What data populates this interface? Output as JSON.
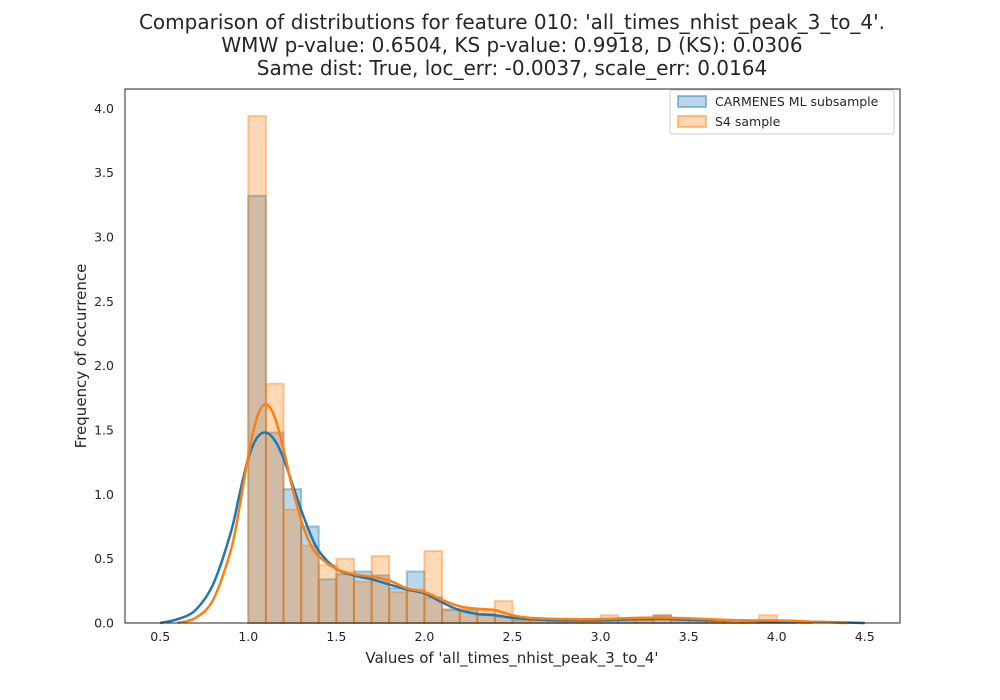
{
  "chart_data": {
    "type": "histogram",
    "title_lines": [
      "Comparison of distributions for feature 010: 'all_times_nhist_peak_3_to_4'.",
      "WMW p-value: 0.6504, KS p-value: 0.9918, D (KS): 0.0306",
      "Same dist: True, loc_err: -0.0037, scale_err: 0.0164"
    ],
    "xlabel": "Values of 'all_times_nhist_peak_3_to_4'",
    "ylabel": "Frequency of occurrence",
    "xlim": [
      0.3,
      4.7
    ],
    "ylim": [
      0,
      4.15
    ],
    "xticks": [
      "0.5",
      "1.0",
      "1.5",
      "2.0",
      "2.5",
      "3.0",
      "3.5",
      "4.0",
      "4.5"
    ],
    "yticks": [
      "0.0",
      "0.5",
      "1.0",
      "1.5",
      "2.0",
      "2.5",
      "3.0",
      "3.5",
      "4.0"
    ],
    "grid": false,
    "legend_position": "top-right",
    "series": [
      {
        "name": "CARMENES ML subsample",
        "color": "#1f77b4",
        "bins": [
          {
            "x0": 1.0,
            "x1": 1.1,
            "y": 3.32
          },
          {
            "x0": 1.1,
            "x1": 1.2,
            "y": 1.48
          },
          {
            "x0": 1.2,
            "x1": 1.3,
            "y": 1.04
          },
          {
            "x0": 1.3,
            "x1": 1.4,
            "y": 0.75
          },
          {
            "x0": 1.4,
            "x1": 1.5,
            "y": 0.34
          },
          {
            "x0": 1.5,
            "x1": 1.6,
            "y": 0.38
          },
          {
            "x0": 1.6,
            "x1": 1.7,
            "y": 0.4
          },
          {
            "x0": 1.7,
            "x1": 1.8,
            "y": 0.37
          },
          {
            "x0": 1.8,
            "x1": 1.9,
            "y": 0.27
          },
          {
            "x0": 1.9,
            "x1": 2.0,
            "y": 0.4
          },
          {
            "x0": 2.0,
            "x1": 2.1,
            "y": 0.2
          },
          {
            "x0": 2.1,
            "x1": 2.2,
            "y": 0.1
          },
          {
            "x0": 2.2,
            "x1": 2.3,
            "y": 0.1
          },
          {
            "x0": 2.3,
            "x1": 2.4,
            "y": 0.07
          },
          {
            "x0": 2.4,
            "x1": 2.5,
            "y": 0.05
          },
          {
            "x0": 2.5,
            "x1": 2.6,
            "y": 0.02
          },
          {
            "x0": 2.6,
            "x1": 2.7,
            "y": 0.02
          },
          {
            "x0": 2.7,
            "x1": 2.8,
            "y": 0.01
          },
          {
            "x0": 2.8,
            "x1": 2.9,
            "y": 0.02
          },
          {
            "x0": 2.9,
            "x1": 3.0,
            "y": 0.02
          },
          {
            "x0": 3.0,
            "x1": 3.1,
            "y": 0.03
          },
          {
            "x0": 3.1,
            "x1": 3.2,
            "y": 0.02
          },
          {
            "x0": 3.2,
            "x1": 3.3,
            "y": 0.02
          },
          {
            "x0": 3.3,
            "x1": 3.4,
            "y": 0.06
          },
          {
            "x0": 3.4,
            "x1": 3.5,
            "y": 0.02
          },
          {
            "x0": 3.5,
            "x1": 3.6,
            "y": 0.02
          },
          {
            "x0": 3.6,
            "x1": 3.7,
            "y": 0.02
          },
          {
            "x0": 3.7,
            "x1": 3.8,
            "y": 0.02
          },
          {
            "x0": 3.8,
            "x1": 3.9,
            "y": 0.01
          },
          {
            "x0": 3.9,
            "x1": 4.0,
            "y": 0.02
          },
          {
            "x0": 4.0,
            "x1": 4.1,
            "y": 0.01
          },
          {
            "x0": 4.1,
            "x1": 4.2,
            "y": 0.01
          }
        ],
        "kde": {
          "x": [
            0.5,
            0.6,
            0.7,
            0.8,
            0.9,
            0.95,
            1.0,
            1.05,
            1.1,
            1.15,
            1.2,
            1.25,
            1.3,
            1.35,
            1.4,
            1.5,
            1.6,
            1.7,
            1.8,
            1.9,
            2.0,
            2.1,
            2.2,
            2.3,
            2.4,
            2.5,
            2.6,
            2.8,
            3.0,
            3.2,
            3.4,
            3.6,
            3.8,
            4.0,
            4.2,
            4.5
          ],
          "y": [
            0.0,
            0.03,
            0.1,
            0.3,
            0.7,
            1.0,
            1.28,
            1.44,
            1.48,
            1.42,
            1.28,
            1.08,
            0.88,
            0.7,
            0.56,
            0.42,
            0.37,
            0.34,
            0.3,
            0.26,
            0.23,
            0.16,
            0.1,
            0.07,
            0.06,
            0.04,
            0.03,
            0.02,
            0.02,
            0.03,
            0.03,
            0.02,
            0.02,
            0.01,
            0.01,
            0.0
          ]
        }
      },
      {
        "name": "S4 sample",
        "color": "#ff7f0e",
        "bins": [
          {
            "x0": 1.0,
            "x1": 1.1,
            "y": 3.94
          },
          {
            "x0": 1.1,
            "x1": 1.2,
            "y": 1.86
          },
          {
            "x0": 1.2,
            "x1": 1.3,
            "y": 0.88
          },
          {
            "x0": 1.3,
            "x1": 1.4,
            "y": 0.6
          },
          {
            "x0": 1.4,
            "x1": 1.5,
            "y": 0.45
          },
          {
            "x0": 1.5,
            "x1": 1.6,
            "y": 0.5
          },
          {
            "x0": 1.6,
            "x1": 1.7,
            "y": 0.32
          },
          {
            "x0": 1.7,
            "x1": 1.8,
            "y": 0.52
          },
          {
            "x0": 1.8,
            "x1": 1.9,
            "y": 0.24
          },
          {
            "x0": 1.9,
            "x1": 2.0,
            "y": 0.26
          },
          {
            "x0": 2.0,
            "x1": 2.1,
            "y": 0.56
          },
          {
            "x0": 2.1,
            "x1": 2.2,
            "y": 0.11
          },
          {
            "x0": 2.2,
            "x1": 2.3,
            "y": 0.11
          },
          {
            "x0": 2.3,
            "x1": 2.4,
            "y": 0.1
          },
          {
            "x0": 2.4,
            "x1": 2.5,
            "y": 0.17
          },
          {
            "x0": 2.5,
            "x1": 2.6,
            "y": 0.03
          },
          {
            "x0": 2.6,
            "x1": 2.7,
            "y": 0.02
          },
          {
            "x0": 2.7,
            "x1": 2.8,
            "y": 0.02
          },
          {
            "x0": 2.8,
            "x1": 2.9,
            "y": 0.02
          },
          {
            "x0": 2.9,
            "x1": 3.0,
            "y": 0.02
          },
          {
            "x0": 3.0,
            "x1": 3.1,
            "y": 0.06
          },
          {
            "x0": 3.1,
            "x1": 3.2,
            "y": 0.02
          },
          {
            "x0": 3.2,
            "x1": 3.3,
            "y": 0.02
          },
          {
            "x0": 3.3,
            "x1": 3.4,
            "y": 0.06
          },
          {
            "x0": 3.4,
            "x1": 3.5,
            "y": 0.04
          },
          {
            "x0": 3.5,
            "x1": 3.6,
            "y": 0.02
          },
          {
            "x0": 3.6,
            "x1": 3.7,
            "y": 0.02
          },
          {
            "x0": 3.7,
            "x1": 3.8,
            "y": 0.02
          },
          {
            "x0": 3.8,
            "x1": 3.9,
            "y": 0.02
          },
          {
            "x0": 3.9,
            "x1": 4.0,
            "y": 0.06
          },
          {
            "x0": 4.0,
            "x1": 4.1,
            "y": 0.02
          }
        ],
        "kde": {
          "x": [
            0.6,
            0.7,
            0.8,
            0.9,
            0.95,
            1.0,
            1.05,
            1.1,
            1.15,
            1.2,
            1.25,
            1.3,
            1.35,
            1.4,
            1.5,
            1.6,
            1.7,
            1.8,
            1.9,
            2.0,
            2.1,
            2.2,
            2.3,
            2.4,
            2.5,
            2.6,
            2.8,
            3.0,
            3.2,
            3.4,
            3.6,
            3.8,
            4.0,
            4.2,
            4.4
          ],
          "y": [
            0.0,
            0.04,
            0.18,
            0.56,
            0.9,
            1.3,
            1.6,
            1.7,
            1.6,
            1.35,
            1.05,
            0.8,
            0.62,
            0.52,
            0.42,
            0.38,
            0.36,
            0.33,
            0.27,
            0.24,
            0.18,
            0.13,
            0.11,
            0.1,
            0.06,
            0.04,
            0.03,
            0.03,
            0.04,
            0.04,
            0.03,
            0.02,
            0.02,
            0.01,
            0.0
          ]
        }
      }
    ]
  }
}
